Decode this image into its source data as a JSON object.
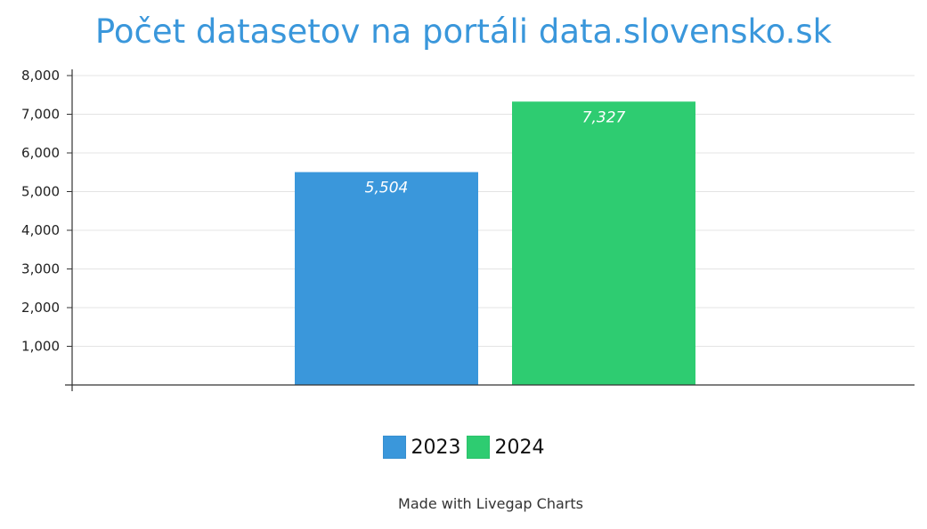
{
  "chart_data": {
    "type": "bar",
    "title": "Počet datasetov na portáli data.slovensko.sk",
    "categories": [
      "2023",
      "2024"
    ],
    "series": [
      {
        "name": "2023",
        "value": 5504,
        "label": "5,504",
        "color": "#3a97db"
      },
      {
        "name": "2024",
        "value": 7327,
        "label": "7,327",
        "color": "#2ecc71"
      }
    ],
    "ylim": [
      0,
      8000
    ],
    "yticks": [
      {
        "value": 1000,
        "label": "1,000"
      },
      {
        "value": 2000,
        "label": "2,000"
      },
      {
        "value": 3000,
        "label": "3,000"
      },
      {
        "value": 4000,
        "label": "4,000"
      },
      {
        "value": 5000,
        "label": "5,000"
      },
      {
        "value": 6000,
        "label": "6,000"
      },
      {
        "value": 7000,
        "label": "7,000"
      },
      {
        "value": 8000,
        "label": "8,000"
      }
    ],
    "grid": true,
    "legend_position": "bottom"
  },
  "footer": {
    "credit": "Made with Livegap Charts"
  }
}
